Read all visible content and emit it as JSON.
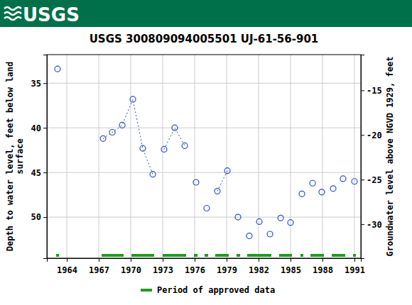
{
  "header": {
    "logo": "USGS"
  },
  "chart_data": {
    "type": "line",
    "title": "USGS 300809094005501 UJ-61-56-901",
    "ylabel": [
      "Depth to water level, feet below land",
      "surface"
    ],
    "y2label": "Groundwater level above NGVD 1929, feet",
    "xlim": [
      1962.13,
      1991.6
    ],
    "xticks": [
      1964,
      1967,
      1970,
      1973,
      1976,
      1979,
      1982,
      1985,
      1988,
      1991
    ],
    "ylim": [
      31.8,
      54.6
    ],
    "yticks": [
      35,
      40,
      45,
      50
    ],
    "y2lim": [
      -11.0,
      -33.8
    ],
    "y2ticks": [
      -15,
      -20,
      -25,
      -30
    ],
    "grid": true,
    "series": [
      {
        "color": "#2a4fd0",
        "marker": "circle",
        "line_style": "dotted",
        "x": [
          1963.13,
          null,
          1967.4,
          1968.27,
          1969.2,
          1970.2,
          1971.13,
          1972.07,
          null,
          1973.13,
          1974.13,
          1975.07,
          null,
          1976.13,
          null,
          1977.13,
          null,
          1978.13,
          1979.07,
          null,
          1980.07,
          null,
          1981.13,
          null,
          1982.07,
          null,
          1983.07,
          null,
          1984.07,
          null,
          1985.0,
          null,
          1986.07,
          null,
          1987.07,
          null,
          1987.93,
          null,
          1989.0,
          null,
          1989.93,
          null,
          1991.0
        ],
        "values": [
          33.4,
          null,
          41.2,
          40.5,
          39.7,
          36.8,
          42.3,
          45.2,
          null,
          42.4,
          40.0,
          42.0,
          null,
          46.1,
          null,
          49.0,
          null,
          47.1,
          44.8,
          null,
          50.0,
          null,
          52.1,
          null,
          50.5,
          null,
          51.9,
          null,
          50.1,
          null,
          50.6,
          null,
          47.4,
          null,
          46.2,
          null,
          47.2,
          null,
          46.8,
          null,
          45.7,
          null,
          46.0
        ]
      }
    ],
    "approved_periods": {
      "name": "Period of approved data",
      "color": "#1e9e1e",
      "ranges": [
        [
          1963.0,
          1963.27
        ],
        [
          1967.27,
          1969.33
        ],
        [
          1970.07,
          1972.2
        ],
        [
          1973.0,
          1975.2
        ],
        [
          1975.93,
          1976.27
        ],
        [
          1976.93,
          1977.27
        ],
        [
          1977.93,
          1979.2
        ],
        [
          1979.93,
          1980.27
        ],
        [
          1980.93,
          1983.2
        ],
        [
          1983.93,
          1985.13
        ],
        [
          1985.93,
          1986.2
        ],
        [
          1986.87,
          1988.13
        ],
        [
          1988.87,
          1990.13
        ],
        [
          1990.87,
          1991.13
        ]
      ]
    }
  }
}
